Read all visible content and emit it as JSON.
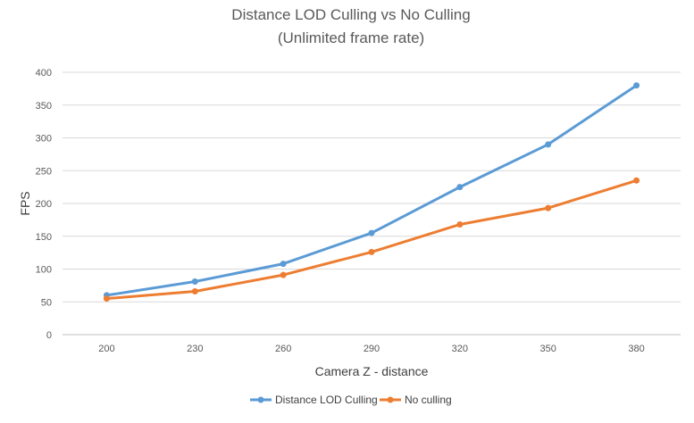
{
  "chart_data": {
    "type": "line",
    "title": "Distance LOD Culling vs No Culling",
    "subtitle": "(Unlimited frame rate)",
    "xlabel": "Camera Z - distance",
    "ylabel": "FPS",
    "categories": [
      "200",
      "230",
      "260",
      "290",
      "320",
      "350",
      "380"
    ],
    "ylim": [
      0,
      400
    ],
    "yticks": [
      0,
      50,
      100,
      150,
      200,
      250,
      300,
      350,
      400
    ],
    "grid": true,
    "legend_position": "bottom",
    "series": [
      {
        "name": "Distance LOD Culling",
        "color": "#5b9bd5",
        "values": [
          60,
          81,
          108,
          155,
          225,
          290,
          380
        ]
      },
      {
        "name": "No culling",
        "color": "#ed7d31",
        "values": [
          55,
          66,
          91,
          126,
          168,
          193,
          235
        ]
      }
    ]
  }
}
